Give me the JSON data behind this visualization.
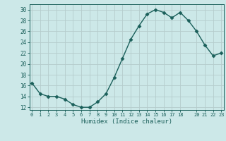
{
  "xlabel": "Humidex (Indice chaleur)",
  "bg_color": "#cce8e8",
  "grid_color": "#b5cccc",
  "line_color": "#1a5f5a",
  "x_values": [
    0,
    1,
    2,
    3,
    4,
    5,
    6,
    7,
    8,
    9,
    10,
    11,
    12,
    13,
    14,
    15,
    16,
    17,
    18,
    19,
    20,
    21,
    22,
    23
  ],
  "y_values": [
    16.5,
    14.5,
    14.0,
    14.0,
    13.5,
    12.5,
    12.0,
    12.0,
    13.0,
    14.5,
    17.5,
    21.0,
    24.5,
    27.0,
    29.2,
    30.0,
    29.5,
    28.5,
    29.5,
    28.0,
    26.0,
    23.5,
    21.5,
    22.0
  ],
  "ylim": [
    11.5,
    31.0
  ],
  "yticks": [
    12,
    14,
    16,
    18,
    20,
    22,
    24,
    26,
    28,
    30
  ],
  "xtick_vals": [
    0,
    1,
    2,
    3,
    4,
    5,
    6,
    7,
    8,
    9,
    10,
    11,
    12,
    13,
    14,
    15,
    16,
    17,
    18,
    20,
    21,
    22,
    23
  ],
  "xtick_labels": [
    "0",
    "1",
    "2",
    "3",
    "4",
    "5",
    "6",
    "7",
    "8",
    "9",
    "10",
    "11",
    "12",
    "13",
    "14",
    "15",
    "16",
    "17",
    "18",
    "20",
    "21",
    "22",
    "23"
  ],
  "marker": "D",
  "marker_size": 2.5,
  "line_width": 1.0
}
